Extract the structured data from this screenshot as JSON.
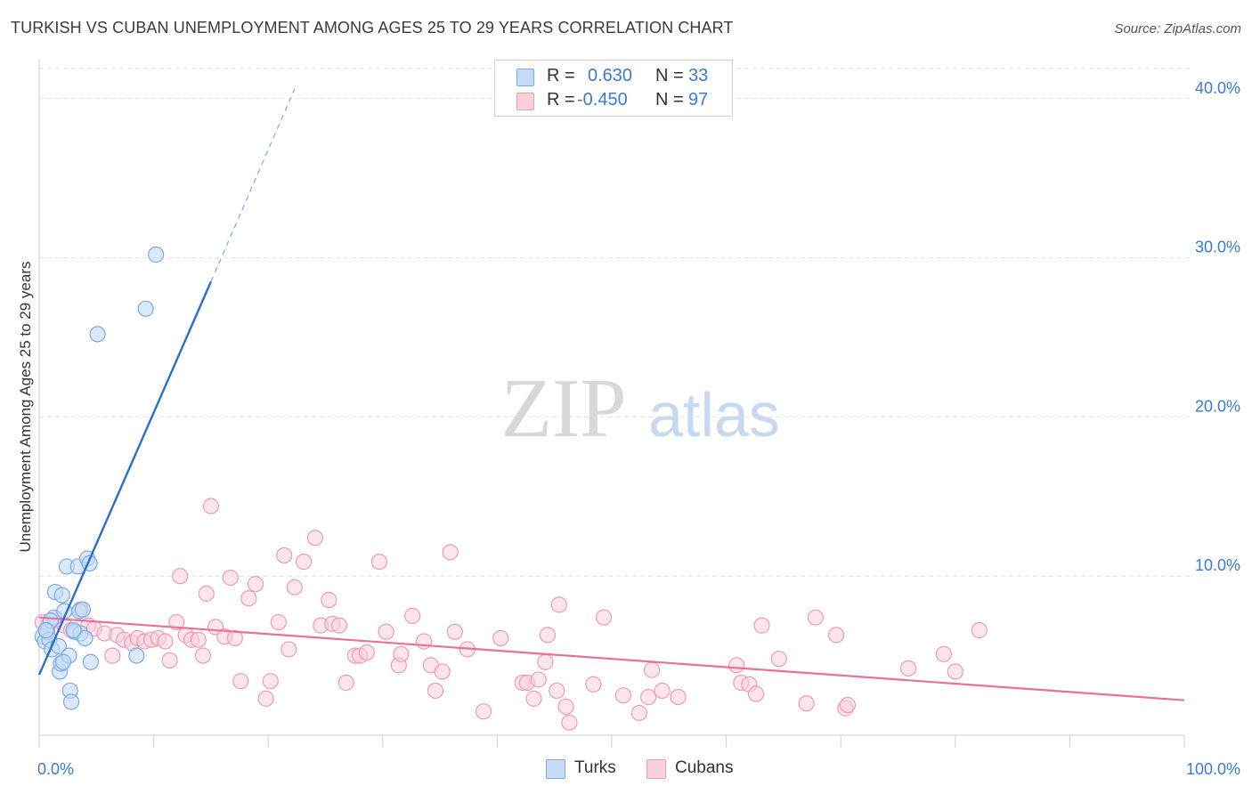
{
  "title": "TURKISH VS CUBAN UNEMPLOYMENT AMONG AGES 25 TO 29 YEARS CORRELATION CHART",
  "source": "Source: ZipAtlas.com",
  "watermark": {
    "zip": "ZIP",
    "atlas": "atlas"
  },
  "legend": {
    "turks": {
      "r_label": "R =",
      "r_value": "0.630",
      "n_label": "N =",
      "n_value": "33"
    },
    "cubans": {
      "r_label": "R =",
      "r_value": "-0.450",
      "n_label": "N =",
      "n_value": "97"
    }
  },
  "bottom_legend": {
    "turks": "Turks",
    "cubans": "Cubans"
  },
  "colors": {
    "turks_fill": "#c5dbf7",
    "turks_stroke": "#7aaae6",
    "turks_line": "#2a6fcc",
    "cubans_fill": "#f9cfdc",
    "cubans_stroke": "#f09ab6",
    "cubans_line": "#e8709a",
    "axis_text": "#3a7bd5",
    "grid": "#e2e2e2"
  },
  "chart_data": {
    "type": "scatter",
    "title": "TURKISH VS CUBAN UNEMPLOYMENT AMONG AGES 25 TO 29 YEARS CORRELATION CHART",
    "xlabel": "",
    "ylabel": "Unemployment Among Ages 25 to 29 years",
    "xlim": [
      0,
      100
    ],
    "ylim": [
      0,
      42
    ],
    "x_tick_labels": [
      {
        "value": 0,
        "label": "0.0%"
      },
      {
        "value": 100,
        "label": "100.0%"
      }
    ],
    "y_tick_labels": [
      {
        "value": 10,
        "label": "10.0%"
      },
      {
        "value": 20,
        "label": "20.0%"
      },
      {
        "value": 30,
        "label": "30.0%"
      },
      {
        "value": 40,
        "label": "40.0%"
      }
    ],
    "series": [
      {
        "name": "Turks",
        "r": 0.63,
        "n": 33,
        "trendline": {
          "x0": 0,
          "y0": 3.8,
          "x1": 15,
          "y1": 28.5,
          "dashed_to_x": 22.3,
          "dashed_to_y": 40.6
        },
        "points": [
          [
            0.3,
            6.2
          ],
          [
            0.5,
            5.9
          ],
          [
            0.7,
            6.5
          ],
          [
            0.9,
            6.0
          ],
          [
            1.1,
            5.4
          ],
          [
            1.3,
            7.4
          ],
          [
            1.4,
            9.0
          ],
          [
            1.7,
            5.6
          ],
          [
            1.8,
            4.0
          ],
          [
            1.9,
            4.5
          ],
          [
            2.0,
            8.8
          ],
          [
            2.2,
            7.8
          ],
          [
            2.4,
            10.6
          ],
          [
            2.6,
            5.0
          ],
          [
            2.7,
            2.8
          ],
          [
            2.8,
            2.1
          ],
          [
            3.1,
            6.5
          ],
          [
            3.4,
            10.6
          ],
          [
            3.5,
            7.8
          ],
          [
            3.6,
            6.4
          ],
          [
            3.8,
            7.9
          ],
          [
            4.0,
            6.1
          ],
          [
            4.2,
            11.1
          ],
          [
            4.4,
            10.8
          ],
          [
            4.5,
            4.6
          ],
          [
            5.1,
            25.2
          ],
          [
            8.5,
            5.0
          ],
          [
            9.3,
            26.8
          ],
          [
            10.2,
            30.2
          ],
          [
            1.0,
            7.2
          ],
          [
            0.6,
            6.6
          ],
          [
            2.1,
            4.6
          ],
          [
            3.0,
            6.6
          ]
        ]
      },
      {
        "name": "Cubans",
        "r": -0.45,
        "n": 97,
        "trendline": {
          "x0": 0,
          "y0": 7.4,
          "x1": 100,
          "y1": 2.2
        },
        "points": [
          [
            0.3,
            7.1
          ],
          [
            0.8,
            6.9
          ],
          [
            1.5,
            7.3
          ],
          [
            2.2,
            6.9
          ],
          [
            2.8,
            6.6
          ],
          [
            3.6,
            7.9
          ],
          [
            4.3,
            6.9
          ],
          [
            4.8,
            6.7
          ],
          [
            5.7,
            6.4
          ],
          [
            6.4,
            5.0
          ],
          [
            6.8,
            6.3
          ],
          [
            7.4,
            6.0
          ],
          [
            8.1,
            5.8
          ],
          [
            8.6,
            6.1
          ],
          [
            9.2,
            5.9
          ],
          [
            9.8,
            6.0
          ],
          [
            10.4,
            6.1
          ],
          [
            11.0,
            5.9
          ],
          [
            11.4,
            4.7
          ],
          [
            12.0,
            7.1
          ],
          [
            12.3,
            10.0
          ],
          [
            12.8,
            6.3
          ],
          [
            13.3,
            6.0
          ],
          [
            13.9,
            6.0
          ],
          [
            14.3,
            5.0
          ],
          [
            14.6,
            8.9
          ],
          [
            15.0,
            14.4
          ],
          [
            15.4,
            6.8
          ],
          [
            16.2,
            6.2
          ],
          [
            16.7,
            9.9
          ],
          [
            17.1,
            6.1
          ],
          [
            17.6,
            3.4
          ],
          [
            18.3,
            8.6
          ],
          [
            18.9,
            9.5
          ],
          [
            19.8,
            2.3
          ],
          [
            20.2,
            3.4
          ],
          [
            20.9,
            7.1
          ],
          [
            21.4,
            11.3
          ],
          [
            21.8,
            5.4
          ],
          [
            22.3,
            9.3
          ],
          [
            23.1,
            10.9
          ],
          [
            24.1,
            12.4
          ],
          [
            24.6,
            6.9
          ],
          [
            25.3,
            8.5
          ],
          [
            25.6,
            7.0
          ],
          [
            26.2,
            6.9
          ],
          [
            26.8,
            3.3
          ],
          [
            27.6,
            5.0
          ],
          [
            28.0,
            5.0
          ],
          [
            28.6,
            5.2
          ],
          [
            29.7,
            10.9
          ],
          [
            30.3,
            6.5
          ],
          [
            31.4,
            4.4
          ],
          [
            31.6,
            5.1
          ],
          [
            32.6,
            7.5
          ],
          [
            33.6,
            5.9
          ],
          [
            34.2,
            4.4
          ],
          [
            34.6,
            2.8
          ],
          [
            35.2,
            4.0
          ],
          [
            35.9,
            11.5
          ],
          [
            36.3,
            6.5
          ],
          [
            37.4,
            5.4
          ],
          [
            38.8,
            1.5
          ],
          [
            40.3,
            6.1
          ],
          [
            42.2,
            3.3
          ],
          [
            42.6,
            3.3
          ],
          [
            43.2,
            2.3
          ],
          [
            43.6,
            3.5
          ],
          [
            44.2,
            4.6
          ],
          [
            44.4,
            6.3
          ],
          [
            45.2,
            2.8
          ],
          [
            45.4,
            8.2
          ],
          [
            46.0,
            1.8
          ],
          [
            46.3,
            0.8
          ],
          [
            48.4,
            3.2
          ],
          [
            49.3,
            7.4
          ],
          [
            51.0,
            2.5
          ],
          [
            52.4,
            1.4
          ],
          [
            53.2,
            2.4
          ],
          [
            53.5,
            4.1
          ],
          [
            54.4,
            2.8
          ],
          [
            55.8,
            2.4
          ],
          [
            60.9,
            4.4
          ],
          [
            61.3,
            3.3
          ],
          [
            62.0,
            3.2
          ],
          [
            62.6,
            2.6
          ],
          [
            63.1,
            6.9
          ],
          [
            64.6,
            4.8
          ],
          [
            67.0,
            2.0
          ],
          [
            67.8,
            7.4
          ],
          [
            69.6,
            6.3
          ],
          [
            70.4,
            1.7
          ],
          [
            70.6,
            1.9
          ],
          [
            75.9,
            4.2
          ],
          [
            79.0,
            5.1
          ],
          [
            80.0,
            4.0
          ],
          [
            82.1,
            6.6
          ]
        ]
      }
    ]
  }
}
